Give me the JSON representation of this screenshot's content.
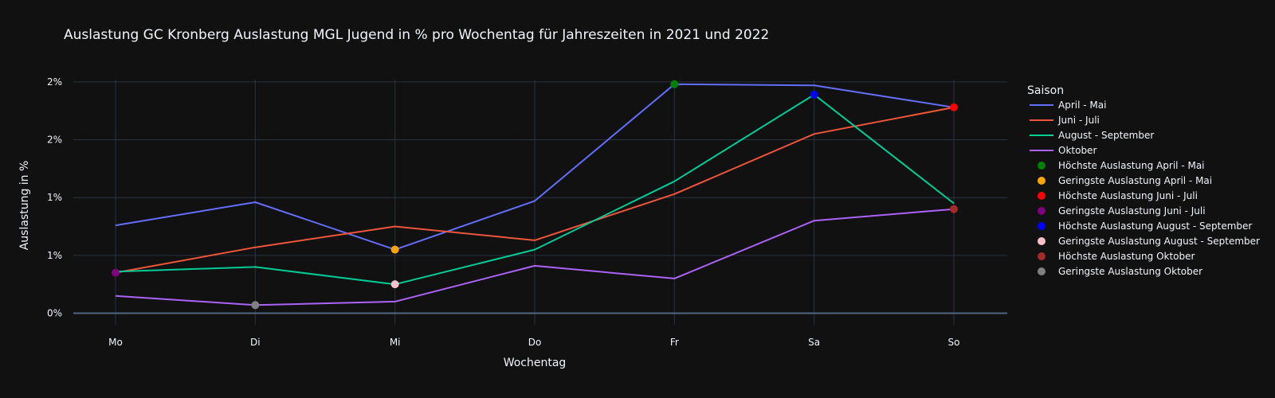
{
  "chart_data": {
    "type": "line",
    "title": "Auslastung GC Kronberg Auslastung MGL Jugend in % pro Wochentag für Jahreszeiten in 2021 und 2022",
    "xlabel": "Wochentag",
    "ylabel": "Auslastung in %",
    "categories": [
      "Mo",
      "Di",
      "Mi",
      "Do",
      "Fr",
      "Sa",
      "So"
    ],
    "ylim": [
      -0.001,
      0.0202
    ],
    "y_ticks": [
      0,
      0.005,
      0.01,
      0.015,
      0.02
    ],
    "y_tick_labels": [
      "0%",
      "1%",
      "1%",
      "2%",
      "2%"
    ],
    "grid": true,
    "legend_title": "Saison",
    "legend_position": "right",
    "series": [
      {
        "name": "April - Mai",
        "color": "#636efa",
        "values": [
          0.0076,
          0.0096,
          0.0055,
          0.0097,
          0.0198,
          0.0197,
          0.0178
        ]
      },
      {
        "name": "Juni - Juli",
        "color": "#ef553b",
        "values": [
          0.0035,
          0.0057,
          0.0075,
          0.0063,
          0.0103,
          0.0155,
          0.0178
        ]
      },
      {
        "name": "August - September",
        "color": "#00cc96",
        "values": [
          0.0036,
          0.004,
          0.0025,
          0.0055,
          0.0114,
          0.0189,
          0.0095
        ]
      },
      {
        "name": "Oktober",
        "color": "#ab63fa",
        "values": [
          0.0015,
          0.0007,
          0.001,
          0.0041,
          0.003,
          0.008,
          0.009
        ]
      }
    ],
    "markers": [
      {
        "name": "Höchste Auslastung April - Mai",
        "color": "#008000",
        "category": "Fr",
        "value": 0.0198
      },
      {
        "name": "Geringste Auslastung April - Mai",
        "color": "#ffa500",
        "category": "Mi",
        "value": 0.0055
      },
      {
        "name": "Höchste Auslastung Juni - Juli",
        "color": "#ff0000",
        "category": "So",
        "value": 0.0178
      },
      {
        "name": "Geringste Auslastung Juni - Juli",
        "color": "#800080",
        "category": "Mo",
        "value": 0.0035
      },
      {
        "name": "Höchste Auslastung August - September",
        "color": "#0000ff",
        "category": "Sa",
        "value": 0.0189
      },
      {
        "name": "Geringste Auslastung August - September",
        "color": "#ffc0cb",
        "category": "Mi",
        "value": 0.0025
      },
      {
        "name": "Höchste Auslastung Oktober",
        "color": "#a52a2a",
        "category": "So",
        "value": 0.009
      },
      {
        "name": "Geringste Auslastung Oktober",
        "color": "#808080",
        "category": "Di",
        "value": 0.0007
      }
    ]
  }
}
